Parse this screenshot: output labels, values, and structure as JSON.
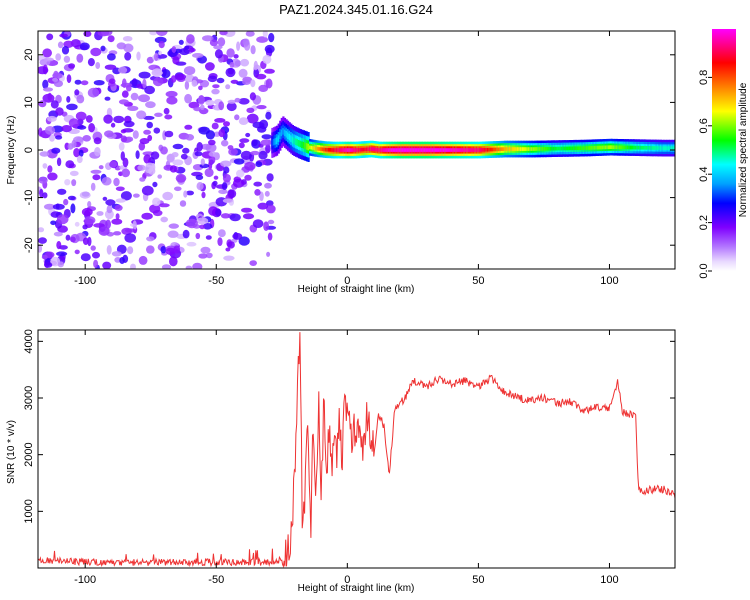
{
  "title": "PAZ1.2024.345.01.16.G24",
  "chart_data": [
    {
      "type": "heatmap",
      "xlabel": "Height of straight line (km)",
      "ylabel": "Frequency (Hz)",
      "xlim": [
        -118,
        125
      ],
      "ylim": [
        -25,
        25
      ],
      "x_ticks": [
        -100,
        -50,
        0,
        50,
        100
      ],
      "y_ticks": [
        -20,
        -10,
        0,
        10,
        20
      ],
      "colorbar": {
        "label": "Normalized spectral amplitude",
        "range": [
          0,
          1
        ],
        "ticks": [
          0.0,
          0.2,
          0.4,
          0.6,
          0.8
        ],
        "colormap": "rainbow"
      },
      "noise_region": {
        "x_range": [
          -118,
          -29
        ],
        "freq_range": [
          -25,
          25
        ],
        "amplitude_range": [
          0.05,
          0.25
        ]
      },
      "signal_ridge": {
        "x": [
          -29,
          -27,
          -25,
          -23,
          -21,
          -18,
          -15,
          -12,
          -9,
          -6,
          -3,
          0,
          3,
          6,
          9,
          12,
          15,
          20,
          30,
          40,
          50,
          60,
          70,
          80,
          90,
          100,
          110,
          120,
          125
        ],
        "frequency": [
          1.5,
          2.0,
          4.0,
          3.0,
          2.0,
          1.2,
          0.6,
          0.3,
          0.1,
          0.0,
          0.0,
          0.0,
          0.0,
          0.1,
          0.2,
          0.0,
          0.0,
          0.0,
          0.0,
          0.0,
          0.0,
          0.2,
          0.2,
          0.3,
          0.4,
          0.6,
          0.5,
          0.4,
          0.4
        ],
        "amplitude": [
          0.3,
          0.4,
          0.35,
          0.4,
          0.45,
          0.5,
          0.6,
          0.7,
          0.8,
          0.85,
          0.9,
          0.95,
          0.9,
          0.85,
          0.9,
          0.9,
          0.95,
          1.0,
          1.0,
          0.95,
          0.9,
          0.7,
          0.6,
          0.5,
          0.55,
          0.6,
          0.5,
          0.45,
          0.45
        ]
      }
    },
    {
      "type": "line",
      "xlabel": "Height of straight line (km)",
      "ylabel": "SNR (10 * v/v)",
      "xlim": [
        -118,
        125
      ],
      "ylim": [
        0,
        4200
      ],
      "x_ticks": [
        -100,
        -50,
        0,
        50,
        100
      ],
      "y_ticks": [
        1000,
        2000,
        3000,
        4000
      ],
      "series": [
        {
          "color": "#ee3333",
          "x": [
            -118,
            -110,
            -100,
            -90,
            -80,
            -70,
            -60,
            -50,
            -40,
            -30,
            -25,
            -22,
            -20,
            -19,
            -18,
            -17,
            -16,
            -15,
            -14,
            -13,
            -12,
            -11,
            -10,
            -9,
            -8,
            -7,
            -6,
            -5,
            -4,
            -3,
            -2,
            -1,
            0,
            2,
            4,
            6,
            8,
            10,
            12,
            14,
            16,
            18,
            20,
            22,
            25,
            30,
            35,
            40,
            45,
            50,
            55,
            60,
            65,
            70,
            75,
            80,
            85,
            90,
            95,
            100,
            103,
            105,
            108,
            110,
            111,
            112,
            115,
            120,
            125
          ],
          "y": [
            150,
            120,
            110,
            100,
            100,
            100,
            110,
            100,
            110,
            100,
            150,
            400,
            1500,
            3200,
            4200,
            300,
            1800,
            2800,
            600,
            2600,
            800,
            3100,
            1200,
            2900,
            1500,
            2500,
            1600,
            2700,
            1800,
            2800,
            1700,
            2900,
            2600,
            2300,
            2700,
            2200,
            2800,
            2000,
            2700,
            2500,
            1600,
            2800,
            2900,
            3000,
            3300,
            3200,
            3350,
            3250,
            3300,
            3200,
            3350,
            3100,
            3000,
            2950,
            3000,
            2900,
            2950,
            2750,
            2850,
            2800,
            3300,
            2750,
            2700,
            2650,
            1400,
            1350,
            1380,
            1400,
            1300
          ]
        }
      ]
    }
  ]
}
